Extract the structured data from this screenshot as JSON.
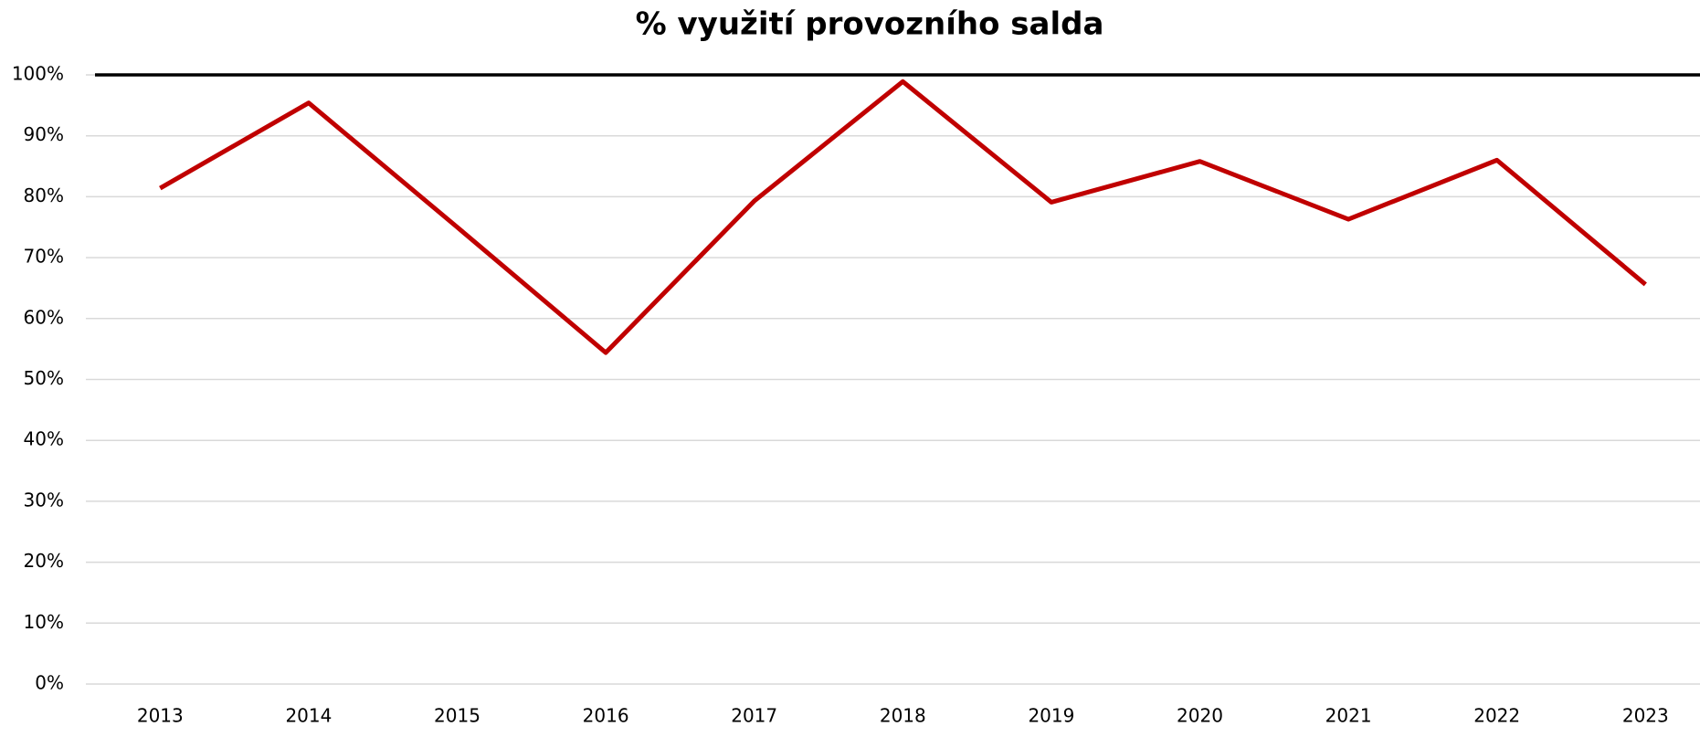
{
  "chart_data": {
    "type": "line",
    "title": "% využití provozního salda",
    "categories": [
      "2013",
      "2014",
      "2015",
      "2016",
      "2017",
      "2018",
      "2019",
      "2020",
      "2021",
      "2022",
      "2023"
    ],
    "series": [
      {
        "color": "#c00000",
        "values": [
          81.4,
          95.4,
          75,
          54.4,
          79.3,
          98.9,
          79.1,
          85.8,
          76.3,
          86,
          65.6
        ]
      }
    ],
    "reference_line": {
      "value": 100,
      "color": "#000000"
    },
    "ylim": [
      0,
      100
    ],
    "yticks": [
      {
        "value": 0,
        "label": "0%"
      },
      {
        "value": 10,
        "label": "10%"
      },
      {
        "value": 20,
        "label": "20%"
      },
      {
        "value": 30,
        "label": "30%"
      },
      {
        "value": 40,
        "label": "40%"
      },
      {
        "value": 50,
        "label": "50%"
      },
      {
        "value": 60,
        "label": "60%"
      },
      {
        "value": 70,
        "label": "70%"
      },
      {
        "value": 80,
        "label": "80%"
      },
      {
        "value": 90,
        "label": "90%"
      },
      {
        "value": 100,
        "label": "100%"
      }
    ],
    "grid": true
  }
}
